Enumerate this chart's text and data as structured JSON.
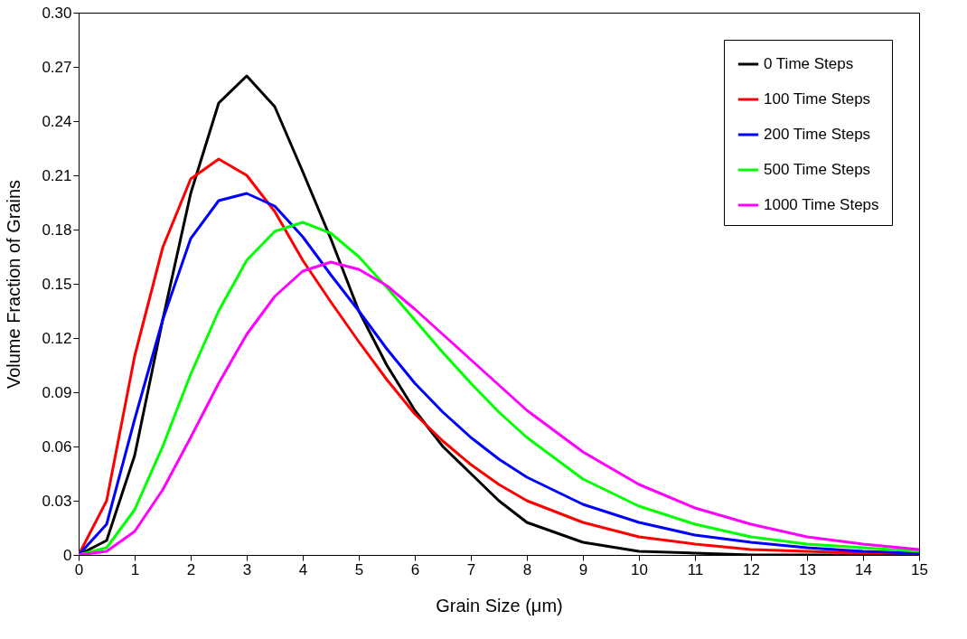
{
  "chart_data": {
    "type": "line",
    "xlabel": "Grain Size (μm)",
    "ylabel": "Volume Fraction of Grains",
    "x": [
      0,
      0.5,
      1,
      1.5,
      2,
      2.5,
      3,
      3.5,
      4,
      4.5,
      5,
      5.5,
      6,
      6.5,
      7,
      7.5,
      8,
      9,
      10,
      11,
      12,
      13,
      14,
      15
    ],
    "series": [
      {
        "name": "0 Time Steps",
        "color": "#000000",
        "values": [
          0,
          0.008,
          0.055,
          0.13,
          0.2,
          0.25,
          0.265,
          0.248,
          0.212,
          0.175,
          0.135,
          0.105,
          0.08,
          0.06,
          0.045,
          0.03,
          0.018,
          0.007,
          0.002,
          0.001,
          0,
          0,
          0,
          0
        ]
      },
      {
        "name": "100 Time Steps",
        "color": "#ff0000",
        "values": [
          0,
          0.03,
          0.11,
          0.17,
          0.208,
          0.219,
          0.21,
          0.19,
          0.163,
          0.14,
          0.118,
          0.097,
          0.078,
          0.063,
          0.05,
          0.039,
          0.03,
          0.018,
          0.01,
          0.006,
          0.003,
          0.002,
          0.001,
          0.001
        ]
      },
      {
        "name": "200 Time Steps",
        "color": "#0000ff",
        "values": [
          0,
          0.017,
          0.075,
          0.13,
          0.175,
          0.196,
          0.2,
          0.193,
          0.176,
          0.155,
          0.135,
          0.114,
          0.095,
          0.079,
          0.065,
          0.053,
          0.043,
          0.028,
          0.018,
          0.011,
          0.007,
          0.004,
          0.002,
          0.001
        ]
      },
      {
        "name": "500 Time Steps",
        "color": "#00ff00",
        "values": [
          0,
          0.004,
          0.025,
          0.06,
          0.1,
          0.135,
          0.163,
          0.179,
          0.184,
          0.178,
          0.165,
          0.148,
          0.13,
          0.112,
          0.095,
          0.079,
          0.065,
          0.042,
          0.027,
          0.017,
          0.01,
          0.006,
          0.004,
          0.002
        ]
      },
      {
        "name": "1000 Time Steps",
        "color": "#ff00ff",
        "values": [
          0,
          0.002,
          0.013,
          0.036,
          0.065,
          0.095,
          0.122,
          0.143,
          0.157,
          0.162,
          0.158,
          0.149,
          0.136,
          0.122,
          0.108,
          0.094,
          0.08,
          0.057,
          0.039,
          0.026,
          0.017,
          0.01,
          0.006,
          0.003
        ]
      }
    ],
    "xlim": [
      0,
      15
    ],
    "xticks": [
      0,
      1,
      2,
      3,
      4,
      5,
      6,
      7,
      8,
      9,
      10,
      11,
      12,
      13,
      14,
      15
    ],
    "ylim": [
      0,
      0.3
    ],
    "yticks": [
      {
        "value": 0,
        "label": "0"
      },
      0.03,
      0.06,
      0.09,
      0.12,
      0.15,
      0.18,
      0.21,
      0.24,
      0.27,
      {
        "value": 0.3,
        "label": "0.30"
      }
    ],
    "legend": "top right",
    "grid": false,
    "marker": "none",
    "line_style": "solid"
  }
}
